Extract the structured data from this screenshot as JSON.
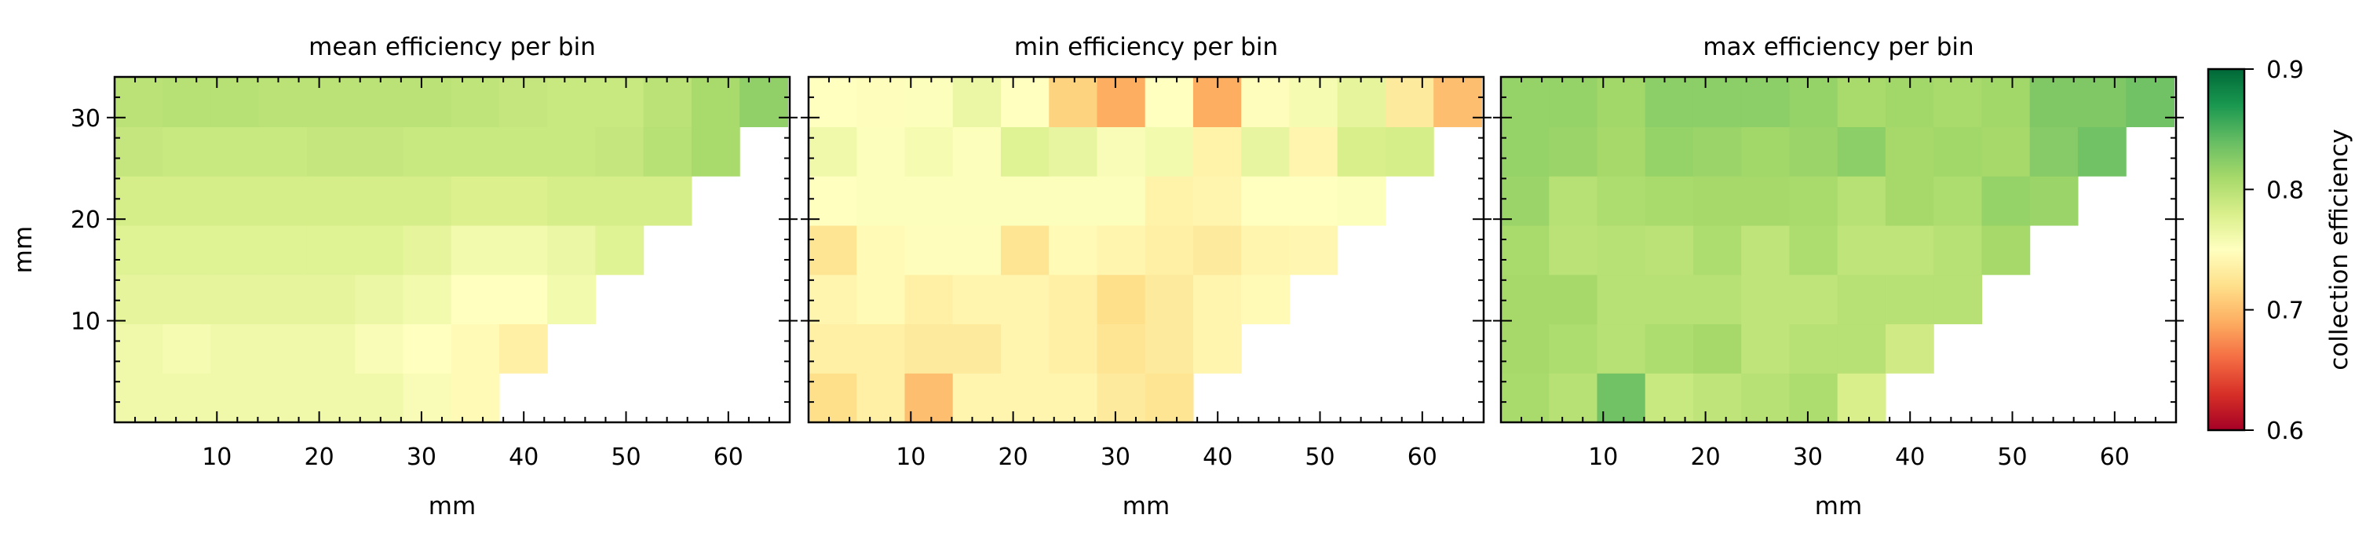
{
  "chart_data": [
    {
      "type": "heatmap",
      "title": "mean efficiency per bin",
      "xlabel": "mm",
      "ylabel": "mm",
      "xlim": [
        0,
        66
      ],
      "ylim": [
        0,
        34
      ],
      "x_ticks": [
        10,
        20,
        30,
        40,
        50,
        60
      ],
      "y_ticks": [
        10,
        20,
        30
      ],
      "grid": false,
      "x_bin_edges": [
        0,
        4.7,
        9.4,
        14.1,
        18.8,
        23.5,
        28.2,
        32.9,
        37.6,
        42.3,
        47,
        51.7,
        56.4,
        61.1,
        65.8
      ],
      "y_bin_edges": [
        0,
        4.85,
        9.7,
        14.55,
        19.4,
        24.25,
        29.1,
        34
      ],
      "values_by_row_from_bottom": [
        [
          0.762,
          0.762,
          0.762,
          0.762,
          0.762,
          0.762,
          0.755,
          0.745
        ],
        [
          0.762,
          0.758,
          0.762,
          0.762,
          0.762,
          0.755,
          0.75,
          0.745,
          0.735
        ],
        [
          0.77,
          0.77,
          0.77,
          0.77,
          0.77,
          0.765,
          0.76,
          0.75,
          0.75,
          0.76
        ],
        [
          0.775,
          0.775,
          0.775,
          0.775,
          0.775,
          0.775,
          0.77,
          0.76,
          0.76,
          0.765,
          0.775
        ],
        [
          0.782,
          0.782,
          0.782,
          0.782,
          0.782,
          0.782,
          0.782,
          0.778,
          0.778,
          0.782,
          0.782,
          0.782
        ],
        [
          0.792,
          0.79,
          0.79,
          0.79,
          0.792,
          0.792,
          0.79,
          0.79,
          0.79,
          0.79,
          0.792,
          0.8,
          0.808
        ],
        [
          0.798,
          0.8,
          0.8,
          0.798,
          0.798,
          0.798,
          0.798,
          0.795,
          0.792,
          0.79,
          0.79,
          0.798,
          0.808,
          0.82
        ]
      ]
    },
    {
      "type": "heatmap",
      "title": "min efficiency per bin",
      "xlabel": "mm",
      "ylabel": "",
      "xlim": [
        0,
        66
      ],
      "ylim": [
        0,
        34
      ],
      "x_ticks": [
        10,
        20,
        30,
        40,
        50,
        60
      ],
      "y_ticks": [
        10,
        20,
        30
      ],
      "grid": false,
      "x_bin_edges": [
        0,
        4.7,
        9.4,
        14.1,
        18.8,
        23.5,
        28.2,
        32.9,
        37.6,
        42.3,
        47,
        51.7,
        56.4,
        61.1,
        65.8
      ],
      "y_bin_edges": [
        0,
        4.85,
        9.7,
        14.55,
        19.4,
        24.25,
        29.1,
        34
      ],
      "values_by_row_from_bottom": [
        [
          0.72,
          0.735,
          0.7,
          0.74,
          0.74,
          0.74,
          0.73,
          0.725
        ],
        [
          0.735,
          0.735,
          0.73,
          0.73,
          0.74,
          0.735,
          0.725,
          0.73,
          0.74
        ],
        [
          0.74,
          0.745,
          0.735,
          0.74,
          0.74,
          0.735,
          0.72,
          0.73,
          0.74,
          0.745
        ],
        [
          0.725,
          0.745,
          0.748,
          0.748,
          0.725,
          0.745,
          0.74,
          0.735,
          0.73,
          0.74,
          0.742
        ],
        [
          0.75,
          0.752,
          0.752,
          0.752,
          0.752,
          0.752,
          0.752,
          0.738,
          0.74,
          0.75,
          0.75,
          0.752
        ],
        [
          0.762,
          0.752,
          0.758,
          0.752,
          0.775,
          0.768,
          0.755,
          0.76,
          0.738,
          0.768,
          0.74,
          0.78,
          0.782
        ],
        [
          0.75,
          0.748,
          0.752,
          0.765,
          0.75,
          0.712,
          0.69,
          0.75,
          0.69,
          0.748,
          0.758,
          0.77,
          0.73,
          0.7
        ]
      ]
    },
    {
      "type": "heatmap",
      "title": "max efficiency per bin",
      "xlabel": "mm",
      "ylabel": "",
      "xlim": [
        0,
        66
      ],
      "ylim": [
        0,
        34
      ],
      "x_ticks": [
        10,
        20,
        30,
        40,
        50,
        60
      ],
      "y_ticks": [
        10,
        20,
        30
      ],
      "grid": false,
      "x_bin_edges": [
        0,
        4.7,
        9.4,
        14.1,
        18.8,
        23.5,
        28.2,
        32.9,
        37.6,
        42.3,
        47,
        51.7,
        56.4,
        61.1,
        65.8
      ],
      "y_bin_edges": [
        0,
        4.85,
        9.7,
        14.55,
        19.4,
        24.25,
        29.1,
        34
      ],
      "values_by_row_from_bottom": [
        [
          0.808,
          0.8,
          0.835,
          0.79,
          0.795,
          0.8,
          0.805,
          0.78
        ],
        [
          0.81,
          0.805,
          0.8,
          0.805,
          0.81,
          0.795,
          0.8,
          0.8,
          0.785
        ],
        [
          0.81,
          0.81,
          0.8,
          0.8,
          0.8,
          0.795,
          0.795,
          0.8,
          0.8,
          0.8
        ],
        [
          0.808,
          0.798,
          0.8,
          0.798,
          0.805,
          0.795,
          0.805,
          0.795,
          0.795,
          0.8,
          0.81
        ],
        [
          0.815,
          0.8,
          0.805,
          0.808,
          0.81,
          0.81,
          0.808,
          0.8,
          0.81,
          0.805,
          0.818,
          0.815
        ],
        [
          0.818,
          0.815,
          0.81,
          0.818,
          0.815,
          0.812,
          0.815,
          0.822,
          0.81,
          0.812,
          0.81,
          0.825,
          0.835
        ],
        [
          0.818,
          0.818,
          0.812,
          0.822,
          0.822,
          0.822,
          0.818,
          0.808,
          0.812,
          0.808,
          0.812,
          0.828,
          0.828,
          0.835
        ]
      ]
    }
  ],
  "colorbar": {
    "label": "collection efficiency",
    "min": 0.6,
    "max": 0.9,
    "ticks": [
      "0.6",
      "0.7",
      "0.8",
      "0.9"
    ],
    "colormap": "RdYlGn"
  }
}
